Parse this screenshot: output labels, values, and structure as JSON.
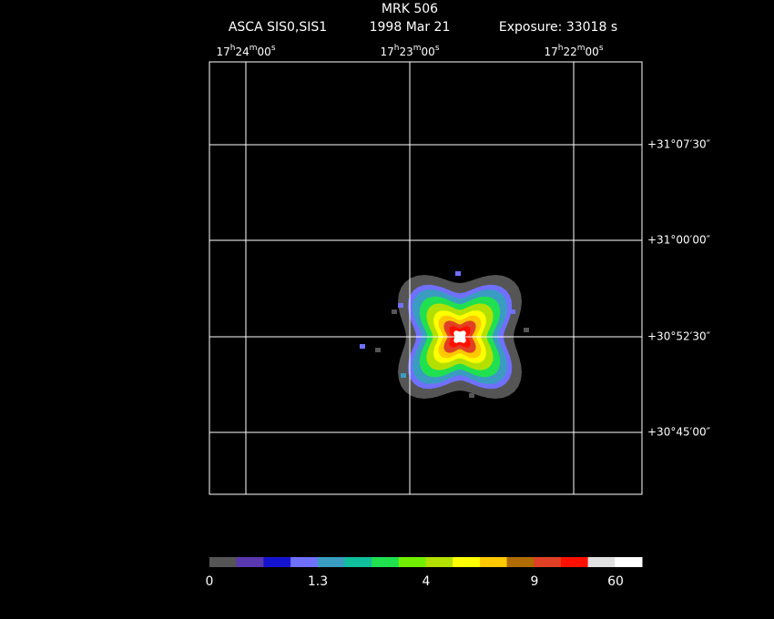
{
  "header": {
    "title": "MRK 506",
    "instrument": "ASCA SIS0,SIS1",
    "date": "1998 Mar 21",
    "exposure": "Exposure: 33018 s"
  },
  "ra_labels": [
    [
      "17",
      "h",
      "24",
      "m",
      "00",
      "s"
    ],
    [
      "17",
      "h",
      "23",
      "m",
      "00",
      "s"
    ],
    [
      "17",
      "h",
      "22",
      "m",
      "00",
      "s"
    ]
  ],
  "dec_labels": [
    "+31°07′30″",
    "+31°00′00″",
    "+30°52′30″",
    "+30°45′00″"
  ],
  "colorbar": {
    "colors": [
      "#555555",
      "#5a38b0",
      "#1414d0",
      "#7070ff",
      "#3a9cc0",
      "#10c09c",
      "#20e050",
      "#70f000",
      "#b4e000",
      "#ffff00",
      "#ffc800",
      "#b06c00",
      "#e04024",
      "#ff1000",
      "#e0e0e0",
      "#ffffff"
    ],
    "labels": [
      "0",
      "1.3",
      "4",
      "9",
      "60"
    ]
  }
}
